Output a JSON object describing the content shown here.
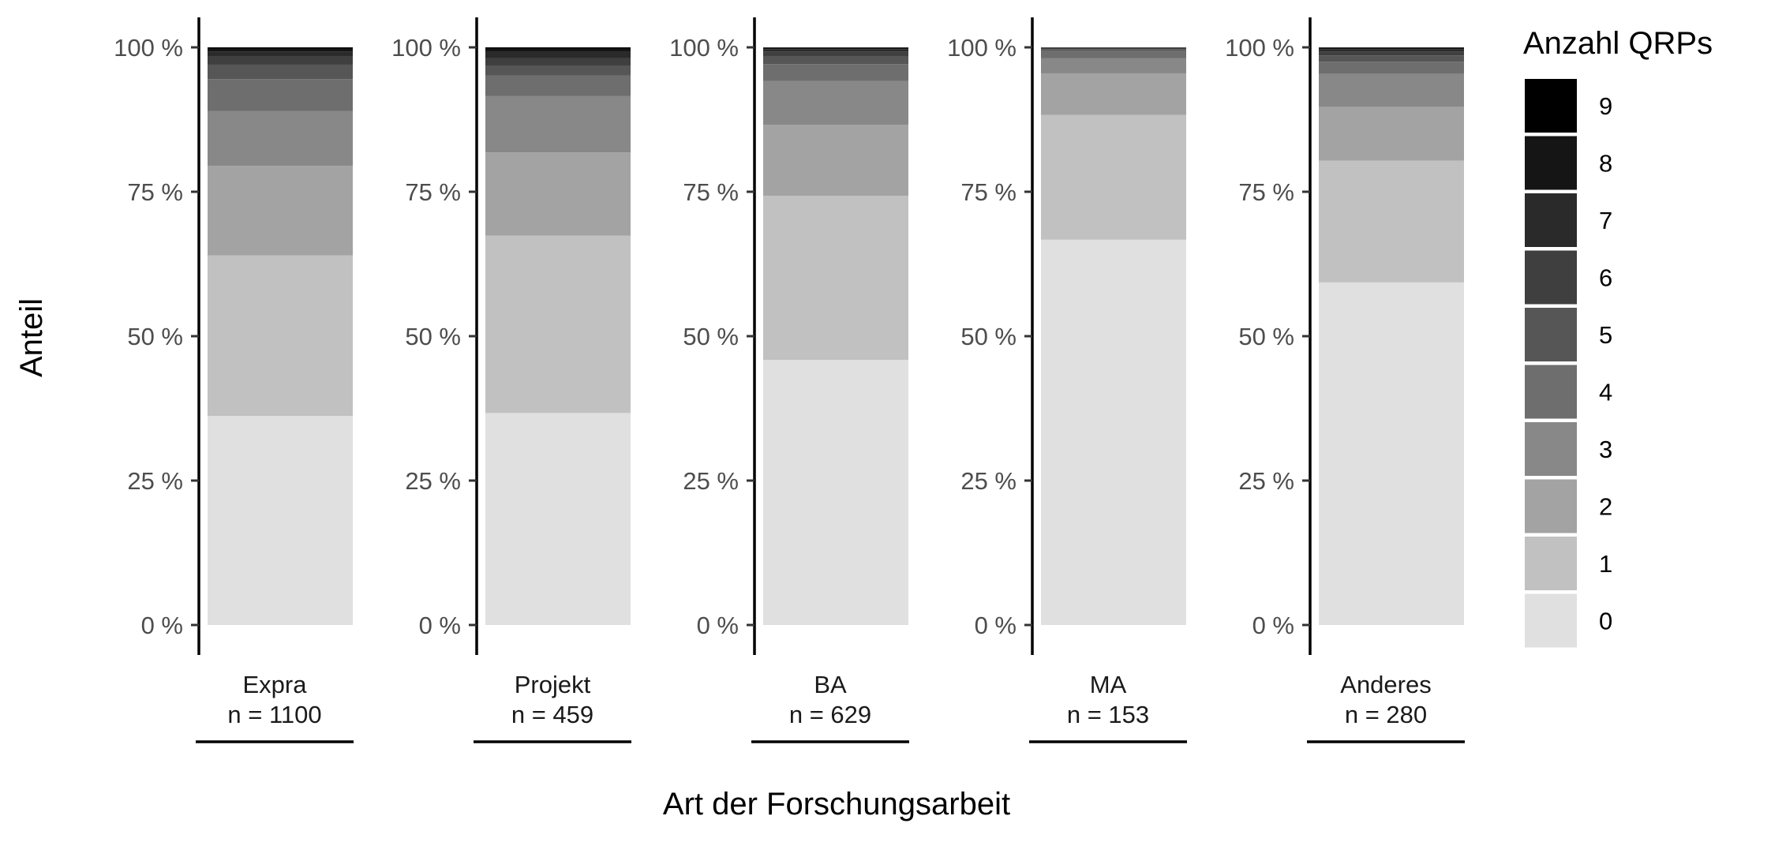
{
  "chart_data": {
    "type": "bar",
    "stacked": true,
    "normalized": true,
    "xlabel": "Art der Forschungsarbeit",
    "ylabel": "Anteil",
    "ylim": [
      0,
      1
    ],
    "yticks": [
      0,
      0.25,
      0.5,
      0.75,
      1.0
    ],
    "ytick_labels": [
      "0 %",
      "25 %",
      "50 %",
      "75 %",
      "100 %"
    ],
    "legend": {
      "title": "Anzahl QRPs",
      "position": "right",
      "labels": [
        "9",
        "8",
        "7",
        "6",
        "5",
        "4",
        "3",
        "2",
        "1",
        "0"
      ]
    },
    "colors": {
      "0": "#e0e0e0",
      "1": "#c1c1c1",
      "2": "#a3a3a3",
      "3": "#888888",
      "4": "#6e6e6e",
      "5": "#565656",
      "6": "#3f3f3f",
      "7": "#2a2a2a",
      "8": "#151515",
      "9": "#000000"
    },
    "grid": false,
    "facets": [
      {
        "label": "Expra",
        "n_label": "n = 1100",
        "segments": [
          {
            "qrp": "0",
            "value": 0.362
          },
          {
            "qrp": "1",
            "value": 0.278
          },
          {
            "qrp": "2",
            "value": 0.155
          },
          {
            "qrp": "3",
            "value": 0.095
          },
          {
            "qrp": "4",
            "value": 0.055
          },
          {
            "qrp": "5",
            "value": 0.025
          },
          {
            "qrp": "6",
            "value": 0.015
          },
          {
            "qrp": "7",
            "value": 0.008
          },
          {
            "qrp": "8",
            "value": 0.005
          },
          {
            "qrp": "9",
            "value": 0.002
          }
        ]
      },
      {
        "label": "Projekt",
        "n_label": "n = 459",
        "segments": [
          {
            "qrp": "0",
            "value": 0.367
          },
          {
            "qrp": "1",
            "value": 0.307
          },
          {
            "qrp": "2",
            "value": 0.144
          },
          {
            "qrp": "3",
            "value": 0.098
          },
          {
            "qrp": "4",
            "value": 0.035
          },
          {
            "qrp": "5",
            "value": 0.017
          },
          {
            "qrp": "6",
            "value": 0.013
          },
          {
            "qrp": "7",
            "value": 0.011
          },
          {
            "qrp": "8",
            "value": 0.006
          },
          {
            "qrp": "9",
            "value": 0.002
          }
        ]
      },
      {
        "label": "BA",
        "n_label": "n = 629",
        "segments": [
          {
            "qrp": "0",
            "value": 0.459
          },
          {
            "qrp": "1",
            "value": 0.284
          },
          {
            "qrp": "2",
            "value": 0.123
          },
          {
            "qrp": "3",
            "value": 0.076
          },
          {
            "qrp": "4",
            "value": 0.029
          },
          {
            "qrp": "5",
            "value": 0.014
          },
          {
            "qrp": "6",
            "value": 0.008
          },
          {
            "qrp": "7",
            "value": 0.004
          },
          {
            "qrp": "8",
            "value": 0.002
          },
          {
            "qrp": "9",
            "value": 0.001
          }
        ]
      },
      {
        "label": "MA",
        "n_label": "n = 153",
        "segments": [
          {
            "qrp": "0",
            "value": 0.667
          },
          {
            "qrp": "1",
            "value": 0.216
          },
          {
            "qrp": "2",
            "value": 0.072
          },
          {
            "qrp": "3",
            "value": 0.026
          },
          {
            "qrp": "4",
            "value": 0.013
          },
          {
            "qrp": "5",
            "value": 0.003
          },
          {
            "qrp": "6",
            "value": 0.003
          }
        ]
      },
      {
        "label": "Anderes",
        "n_label": "n = 280",
        "segments": [
          {
            "qrp": "0",
            "value": 0.593
          },
          {
            "qrp": "1",
            "value": 0.211
          },
          {
            "qrp": "2",
            "value": 0.093
          },
          {
            "qrp": "3",
            "value": 0.057
          },
          {
            "qrp": "4",
            "value": 0.021
          },
          {
            "qrp": "5",
            "value": 0.011
          },
          {
            "qrp": "6",
            "value": 0.007
          },
          {
            "qrp": "7",
            "value": 0.004
          },
          {
            "qrp": "8",
            "value": 0.002
          },
          {
            "qrp": "9",
            "value": 0.001
          }
        ]
      }
    ]
  }
}
